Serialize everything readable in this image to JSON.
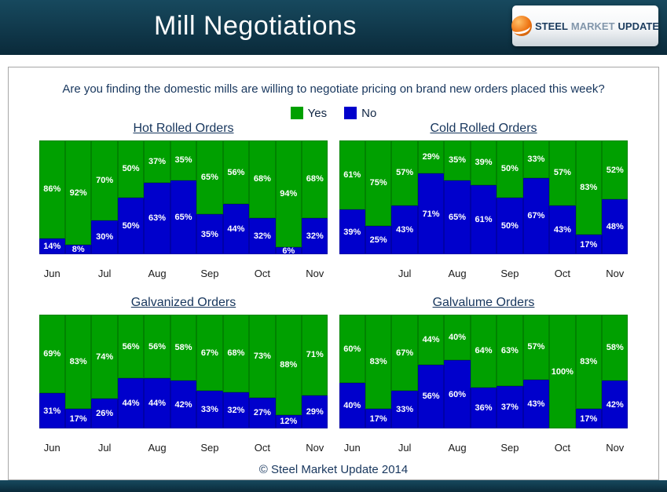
{
  "header": {
    "title": "Mill Negotiations",
    "logo": {
      "steel": "STEEL",
      "market": "MARKET",
      "update": "UPDATE"
    }
  },
  "question": "Are you finding the domestic mills are willing to negotiate pricing on brand new orders placed this week?",
  "legend": {
    "yes": "Yes",
    "no": "No"
  },
  "footer": "© Steel Market Update 2014",
  "colors": {
    "yes": "#00a000",
    "no": "#0000cc",
    "text_navy": "#17365d",
    "header_bg_top": "#17495e",
    "header_bg_bottom": "#0a2a3a",
    "logo_orange": "#ee7414"
  },
  "chart_data": [
    {
      "type": "bar",
      "stacked": true,
      "title": "Hot Rolled Orders",
      "value_suffix": "%",
      "ylim": [
        0,
        100
      ],
      "grid": false,
      "legend_position": "top-center",
      "categories": [
        "Jun",
        "",
        "Jul",
        "",
        "Aug",
        "",
        "Sep",
        "",
        "Oct",
        "",
        "Nov"
      ],
      "series": [
        {
          "name": "Yes",
          "values": [
            86,
            92,
            70,
            50,
            37,
            35,
            65,
            56,
            68,
            94,
            68
          ]
        },
        {
          "name": "No",
          "values": [
            14,
            8,
            30,
            50,
            63,
            65,
            35,
            44,
            32,
            6,
            32
          ]
        }
      ]
    },
    {
      "type": "bar",
      "stacked": true,
      "title": "Cold Rolled Orders",
      "value_suffix": "%",
      "ylim": [
        0,
        100
      ],
      "grid": false,
      "legend_position": "top-center",
      "categories": [
        "",
        "",
        "Jul",
        "",
        "Aug",
        "",
        "Sep",
        "",
        "Oct",
        "",
        "Nov"
      ],
      "series": [
        {
          "name": "Yes",
          "values": [
            61,
            75,
            57,
            29,
            35,
            39,
            50,
            33,
            57,
            83,
            52
          ]
        },
        {
          "name": "No",
          "values": [
            39,
            25,
            43,
            71,
            65,
            61,
            50,
            67,
            43,
            17,
            48
          ]
        }
      ]
    },
    {
      "type": "bar",
      "stacked": true,
      "title": "Galvanized Orders",
      "value_suffix": "%",
      "ylim": [
        0,
        100
      ],
      "grid": false,
      "legend_position": "top-center",
      "categories": [
        "Jun",
        "",
        "Jul",
        "",
        "Aug",
        "",
        "Sep",
        "",
        "Oct",
        "",
        "Nov"
      ],
      "series": [
        {
          "name": "Yes",
          "values": [
            69,
            83,
            74,
            56,
            56,
            58,
            67,
            68,
            73,
            88,
            71
          ]
        },
        {
          "name": "No",
          "values": [
            31,
            17,
            26,
            44,
            44,
            42,
            33,
            32,
            27,
            12,
            29
          ]
        }
      ]
    },
    {
      "type": "bar",
      "stacked": true,
      "title": "Galvalume Orders",
      "value_suffix": "%",
      "ylim": [
        0,
        100
      ],
      "grid": false,
      "legend_position": "top-center",
      "categories": [
        "Jun",
        "",
        "Jul",
        "",
        "Aug",
        "",
        "Sep",
        "",
        "Oct",
        "",
        "Nov"
      ],
      "series": [
        {
          "name": "Yes",
          "values": [
            60,
            83,
            67,
            44,
            40,
            64,
            63,
            57,
            100,
            83,
            58
          ]
        },
        {
          "name": "No",
          "values": [
            40,
            17,
            33,
            56,
            60,
            36,
            37,
            43,
            0,
            17,
            42
          ]
        }
      ]
    }
  ]
}
